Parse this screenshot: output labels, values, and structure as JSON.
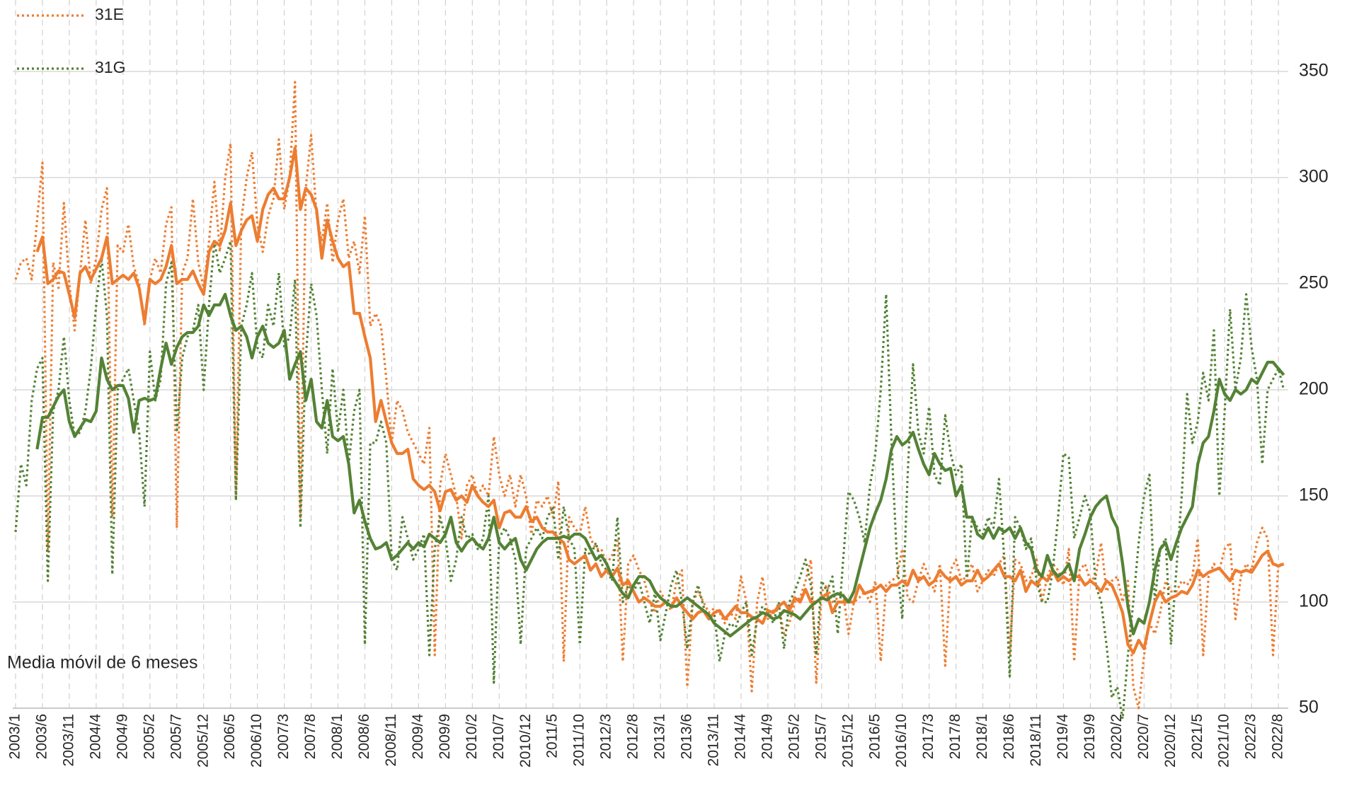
{
  "chart_data": {
    "type": "line",
    "annotation": "Media móvil de 6 meses",
    "categories": [
      "2003/1",
      null,
      null,
      null,
      null,
      "2003/6",
      null,
      null,
      null,
      null,
      "2003/11",
      null,
      null,
      null,
      null,
      "2004/4",
      null,
      null,
      null,
      null,
      "2004/9",
      null,
      null,
      null,
      null,
      "2005/2",
      null,
      null,
      null,
      null,
      "2005/7",
      null,
      null,
      null,
      null,
      "2005/12",
      null,
      null,
      null,
      null,
      "2006/5",
      null,
      null,
      null,
      null,
      "2006/10",
      null,
      null,
      null,
      null,
      "2007/3",
      null,
      null,
      null,
      null,
      "2007/8",
      null,
      null,
      null,
      null,
      "2008/1",
      null,
      null,
      null,
      null,
      "2008/6",
      null,
      null,
      null,
      null,
      "2008/11",
      null,
      null,
      null,
      null,
      "2009/4",
      null,
      null,
      null,
      null,
      "2009/9",
      null,
      null,
      null,
      null,
      "2010/2",
      null,
      null,
      null,
      null,
      "2010/7",
      null,
      null,
      null,
      null,
      "2010/12",
      null,
      null,
      null,
      null,
      "2011/5",
      null,
      null,
      null,
      null,
      "2011/10",
      null,
      null,
      null,
      null,
      "2012/3",
      null,
      null,
      null,
      null,
      "2012/8",
      null,
      null,
      null,
      null,
      "2013/1",
      null,
      null,
      null,
      null,
      "2013/6",
      null,
      null,
      null,
      null,
      "2013/11",
      null,
      null,
      null,
      null,
      "2014/4",
      null,
      null,
      null,
      null,
      "2014/9",
      null,
      null,
      null,
      null,
      "2015/2",
      null,
      null,
      null,
      null,
      "2015/7",
      null,
      null,
      null,
      null,
      "2015/12",
      null,
      null,
      null,
      null,
      "2016/5",
      null,
      null,
      null,
      null,
      "2016/10",
      null,
      null,
      null,
      null,
      "2017/3",
      null,
      null,
      null,
      null,
      "2017/8",
      null,
      null,
      null,
      null,
      "2018/1",
      null,
      null,
      null,
      null,
      "2018/6",
      null,
      null,
      null,
      null,
      "2018/11",
      null,
      null,
      null,
      null,
      "2019/4",
      null,
      null,
      null,
      null,
      "2019/9",
      null,
      null,
      null,
      null,
      "2020/2",
      null,
      null,
      null,
      null,
      "2020/7",
      null,
      null,
      null,
      null,
      "2020/12",
      null,
      null,
      null,
      null,
      "2021/5",
      null,
      null,
      null,
      null,
      "2021/10",
      null,
      null,
      null,
      null,
      "2022/3",
      null,
      null,
      null,
      null,
      "2022/8",
      null
    ],
    "series": [
      {
        "name": "31E",
        "color": "#ED7D31",
        "style": "dotted",
        "values": [
          252,
          260,
          262,
          252,
          280,
          307,
          125,
          260,
          248,
          288,
          250,
          228,
          255,
          280,
          250,
          262,
          285,
          295,
          140,
          268,
          265,
          278,
          258,
          250,
          230,
          252,
          262,
          255,
          278,
          286,
          135,
          255,
          262,
          290,
          260,
          248,
          270,
          298,
          265,
          300,
          316,
          148,
          280,
          300,
          312,
          278,
          265,
          282,
          290,
          318,
          285,
          300,
          345,
          140,
          295,
          320,
          282,
          270,
          288,
          260,
          280,
          290,
          262,
          270,
          255,
          282,
          230,
          236,
          230,
          205,
          175,
          195,
          190,
          180,
          175,
          170,
          165,
          182,
          75,
          155,
          170,
          160,
          150,
          130,
          155,
          160,
          150,
          155,
          150,
          178,
          160,
          150,
          160,
          145,
          160,
          150,
          132,
          148,
          145,
          150,
          140,
          157,
          72,
          140,
          135,
          132,
          145,
          130,
          125,
          125,
          118,
          122,
          130,
          72,
          118,
          122,
          115,
          110,
          100,
          95,
          105,
          100,
          96,
          110,
          115,
          60,
          100,
          105,
          100,
          95,
          97,
          95,
          90,
          95,
          92,
          112,
          100,
          58,
          100,
          112,
          92,
          96,
          98,
          85,
          90,
          100,
          102,
          110,
          120,
          62,
          105,
          108,
          100,
          102,
          104,
          85,
          100,
          102,
          105,
          100,
          110,
          72,
          108,
          110,
          112,
          125,
          102,
          100,
          110,
          118,
          112,
          105,
          118,
          70,
          115,
          120,
          110,
          112,
          118,
          105,
          110,
          115,
          112,
          118,
          122,
          75,
          120,
          118,
          110,
          112,
          120,
          100,
          112,
          118,
          115,
          108,
          125,
          72,
          115,
          118,
          110,
          112,
          128,
          105,
          110,
          112,
          100,
          110,
          60,
          50,
          75,
          90,
          85,
          95,
          110,
          105,
          105,
          110,
          108,
          112,
          130,
          75,
          112,
          118,
          115,
          125,
          128,
          92,
          112,
          118,
          115,
          128,
          135,
          130,
          75,
          118,
          117
        ]
      },
      {
        "name": "31G",
        "color": "#548235",
        "style": "dotted",
        "values": [
          133,
          165,
          155,
          195,
          210,
          215,
          110,
          190,
          200,
          225,
          195,
          178,
          180,
          190,
          210,
          240,
          262,
          235,
          113,
          200,
          205,
          210,
          195,
          180,
          145,
          218,
          195,
          205,
          250,
          260,
          180,
          215,
          225,
          228,
          240,
          200,
          240,
          270,
          255,
          262,
          270,
          148,
          230,
          240,
          255,
          220,
          215,
          240,
          230,
          255,
          220,
          225,
          252,
          135,
          215,
          250,
          235,
          200,
          170,
          210,
          180,
          200,
          165,
          190,
          200,
          80,
          175,
          175,
          185,
          175,
          120,
          115,
          140,
          130,
          120,
          125,
          132,
          75,
          125,
          140,
          130,
          110,
          120,
          140,
          130,
          132,
          125,
          130,
          150,
          62,
          130,
          135,
          130,
          120,
          80,
          125,
          130,
          135,
          130,
          140,
          145,
          120,
          145,
          130,
          125,
          80,
          125,
          122,
          128,
          118,
          115,
          110,
          140,
          100,
          108,
          105,
          110,
          100,
          90,
          105,
          82,
          95,
          108,
          115,
          100,
          78,
          100,
          108,
          98,
          92,
          95,
          72,
          85,
          90,
          88,
          95,
          100,
          75,
          92,
          98,
          95,
          90,
          100,
          78,
          100,
          105,
          112,
          120,
          108,
          75,
          110,
          105,
          112,
          85,
          120,
          152,
          148,
          140,
          128,
          155,
          170,
          200,
          245,
          175,
          120,
          92,
          160,
          212,
          180,
          170,
          192,
          160,
          155,
          188,
          170,
          160,
          165,
          110,
          140,
          135,
          132,
          140,
          135,
          158,
          120,
          65,
          140,
          135,
          125,
          130,
          110,
          100,
          100,
          115,
          140,
          170,
          168,
          130,
          140,
          150,
          142,
          108,
          100,
          80,
          55,
          60,
          45,
          75,
          100,
          128,
          150,
          160,
          100,
          125,
          130,
          80,
          115,
          150,
          198,
          175,
          185,
          208,
          195,
          228,
          150,
          190,
          238,
          200,
          215,
          245,
          220,
          205,
          165,
          200,
          205,
          210,
          200
        ]
      },
      {
        "color": "#ED7D31",
        "style": "solid",
        "values": [
          null,
          null,
          null,
          null,
          265,
          272,
          250,
          252,
          256,
          255,
          245,
          234,
          255,
          258,
          252,
          257,
          262,
          272,
          250,
          252,
          254,
          252,
          255,
          248,
          232,
          252,
          250,
          252,
          258,
          268,
          250,
          252,
          252,
          256,
          250,
          245,
          265,
          270,
          268,
          275,
          288,
          268,
          275,
          280,
          282,
          270,
          285,
          292,
          295,
          290,
          290,
          300,
          314,
          285,
          295,
          292,
          285,
          262,
          280,
          270,
          262,
          258,
          260,
          236,
          236,
          225,
          215,
          185,
          195,
          185,
          175,
          170,
          170,
          172,
          158,
          155,
          153,
          155,
          152,
          143,
          152,
          153,
          148,
          150,
          147,
          155,
          150,
          147,
          145,
          148,
          135,
          142,
          143,
          140,
          140,
          145,
          138,
          140,
          135,
          133,
          133,
          130,
          128,
          120,
          118,
          120,
          122,
          115,
          118,
          112,
          115,
          112,
          116,
          108,
          110,
          105,
          100,
          102,
          100,
          98,
          98,
          100,
          98,
          102,
          98,
          95,
          92,
          95,
          96,
          92,
          95,
          96,
          92,
          95,
          98,
          95,
          95,
          93,
          92,
          90,
          96,
          95,
          98,
          100,
          96,
          102,
          100,
          106,
          100,
          100,
          102,
          104,
          95,
          100,
          100,
          100,
          100,
          108,
          104,
          105,
          106,
          108,
          105,
          108,
          108,
          110,
          108,
          115,
          110,
          112,
          108,
          110,
          115,
          112,
          110,
          112,
          108,
          110,
          110,
          115,
          110,
          112,
          115,
          118,
          112,
          112,
          110,
          115,
          105,
          110,
          108,
          112,
          110,
          115,
          110,
          112,
          110,
          112,
          112,
          108,
          110,
          108,
          105,
          110,
          108,
          102,
          95,
          80,
          76,
          82,
          78,
          90,
          100,
          105,
          100,
          102,
          103,
          105,
          104,
          108,
          115,
          112,
          114,
          115,
          116,
          113,
          110,
          115,
          114,
          115,
          114,
          118,
          122,
          124,
          118,
          117,
          118
        ]
      },
      {
        "color": "#548235",
        "style": "solid",
        "values": [
          null,
          null,
          null,
          null,
          172,
          187,
          187,
          192,
          197,
          200,
          185,
          178,
          182,
          186,
          185,
          190,
          215,
          205,
          200,
          202,
          202,
          196,
          180,
          195,
          196,
          195,
          196,
          210,
          222,
          212,
          220,
          225,
          227,
          227,
          230,
          240,
          235,
          240,
          240,
          245,
          235,
          228,
          230,
          225,
          215,
          225,
          230,
          222,
          220,
          222,
          228,
          205,
          212,
          218,
          195,
          205,
          185,
          182,
          195,
          178,
          176,
          178,
          165,
          142,
          148,
          138,
          130,
          125,
          126,
          128,
          120,
          122,
          125,
          128,
          125,
          128,
          126,
          132,
          130,
          128,
          132,
          140,
          128,
          124,
          128,
          130,
          127,
          125,
          130,
          140,
          128,
          125,
          128,
          130,
          120,
          115,
          120,
          125,
          128,
          130,
          130,
          130,
          131,
          130,
          132,
          132,
          130,
          125,
          120,
          122,
          118,
          112,
          108,
          104,
          102,
          108,
          112,
          112,
          110,
          105,
          102,
          100,
          98,
          98,
          100,
          102,
          100,
          98,
          96,
          94,
          90,
          88,
          86,
          84,
          86,
          88,
          90,
          92,
          93,
          95,
          94,
          92,
          93,
          96,
          95,
          94,
          92,
          95,
          98,
          100,
          102,
          101,
          103,
          104,
          103,
          100,
          105,
          115,
          125,
          135,
          142,
          148,
          158,
          172,
          178,
          174,
          176,
          180,
          172,
          165,
          160,
          170,
          165,
          162,
          163,
          150,
          155,
          140,
          140,
          132,
          130,
          135,
          130,
          135,
          133,
          135,
          130,
          135,
          128,
          125,
          115,
          112,
          122,
          115,
          112,
          114,
          118,
          110,
          125,
          132,
          140,
          145,
          148,
          150,
          140,
          135,
          118,
          98,
          85,
          92,
          90,
          100,
          115,
          125,
          128,
          120,
          128,
          135,
          140,
          145,
          165,
          175,
          178,
          190,
          205,
          198,
          195,
          200,
          198,
          200,
          205,
          203,
          208,
          213,
          213,
          210,
          207
        ]
      }
    ],
    "ylim": [
      50,
      350
    ],
    "yticks": [
      50,
      100,
      150,
      200,
      250,
      300,
      350
    ],
    "grid": true,
    "legend": "top-left"
  }
}
